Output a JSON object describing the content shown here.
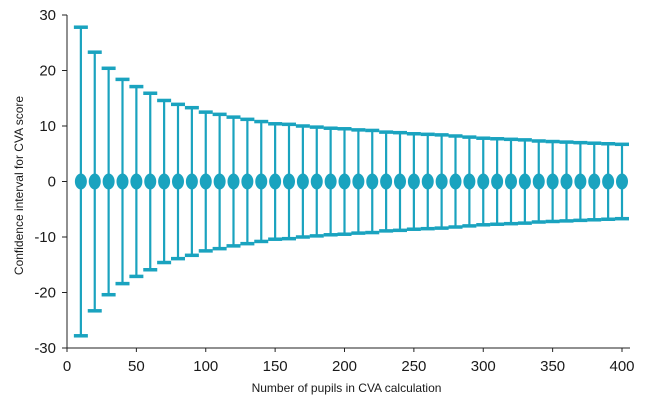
{
  "chart_data": {
    "type": "errorbar",
    "title": "",
    "xlabel": "Number of pupils in CVA calculation",
    "ylabel": "Confidence interval for CVA score",
    "xlim": [
      0,
      400
    ],
    "ylim": [
      -30,
      30
    ],
    "x_ticks": [
      0,
      50,
      100,
      150,
      200,
      250,
      300,
      350,
      400
    ],
    "y_ticks": [
      30,
      20,
      10,
      0,
      -10,
      -20,
      -30
    ],
    "x_tick_labels": [
      "0",
      "50",
      "100",
      "150",
      "200",
      "250",
      "300",
      "350",
      "400"
    ],
    "y_tick_labels": [
      "30",
      "20",
      "10",
      "0",
      "-10",
      "-20",
      "-30"
    ],
    "color": "#1aa3bf",
    "grid": false,
    "legend": "none",
    "series": [
      {
        "x": [
          10,
          20,
          30,
          40,
          50,
          60,
          70,
          80,
          90,
          100,
          110,
          120,
          130,
          140,
          150,
          160,
          170,
          180,
          190,
          200,
          210,
          220,
          230,
          240,
          250,
          260,
          270,
          280,
          290,
          300,
          310,
          320,
          330,
          340,
          350,
          360,
          370,
          380,
          390,
          400
        ],
        "center": [
          0,
          0,
          0,
          0,
          0,
          0,
          0,
          0,
          0,
          0,
          0,
          0,
          0,
          0,
          0,
          0,
          0,
          0,
          0,
          0,
          0,
          0,
          0,
          0,
          0,
          0,
          0,
          0,
          0,
          0,
          0,
          0,
          0,
          0,
          0,
          0,
          0,
          0,
          0,
          0
        ],
        "upper": [
          27.8,
          23.3,
          20.4,
          18.4,
          17.1,
          15.9,
          14.6,
          13.9,
          13.3,
          12.5,
          12.1,
          11.6,
          11.2,
          10.8,
          10.4,
          10.3,
          10.0,
          9.8,
          9.6,
          9.5,
          9.3,
          9.2,
          8.9,
          8.8,
          8.6,
          8.5,
          8.4,
          8.2,
          8.0,
          7.8,
          7.7,
          7.6,
          7.5,
          7.3,
          7.2,
          7.1,
          7.0,
          6.9,
          6.8,
          6.7
        ],
        "lower": [
          -27.8,
          -23.3,
          -20.4,
          -18.4,
          -17.1,
          -15.9,
          -14.6,
          -13.9,
          -13.3,
          -12.5,
          -12.1,
          -11.6,
          -11.2,
          -10.8,
          -10.4,
          -10.3,
          -10.0,
          -9.8,
          -9.6,
          -9.5,
          -9.3,
          -9.2,
          -8.9,
          -8.8,
          -8.6,
          -8.5,
          -8.4,
          -8.2,
          -8.0,
          -7.8,
          -7.7,
          -7.6,
          -7.5,
          -7.3,
          -7.2,
          -7.1,
          -7.0,
          -6.9,
          -6.8,
          -6.7
        ]
      }
    ]
  }
}
